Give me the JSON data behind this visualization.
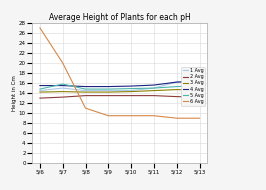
{
  "title": "Average Height of Plants for each pH",
  "ylabel": "Height in Cm",
  "x_labels": [
    "5/6",
    "5/7",
    "5/8",
    "5/9",
    "5/10",
    "5/11",
    "5/12",
    "5/13"
  ],
  "ylim": [
    0,
    28
  ],
  "yticks": [
    0,
    2,
    4,
    6,
    8,
    10,
    12,
    14,
    16,
    18,
    20,
    22,
    24,
    26,
    28
  ],
  "series": [
    {
      "label": "1 Avg",
      "color": "#a8c8e8",
      "values": [
        14.5,
        15.0,
        14.5,
        14.5,
        14.5,
        15.0,
        16.2,
        16.3
      ]
    },
    {
      "label": "2 Avg",
      "color": "#8B3a3a",
      "values": [
        13.0,
        13.2,
        13.5,
        13.5,
        13.5,
        13.5,
        13.3,
        13.2
      ]
    },
    {
      "label": "3 Avg",
      "color": "#8B8000",
      "values": [
        14.2,
        14.3,
        14.2,
        14.2,
        14.3,
        14.5,
        14.7,
        14.6
      ]
    },
    {
      "label": "4 Avg",
      "color": "#1a237e",
      "values": [
        15.5,
        15.5,
        15.3,
        15.3,
        15.4,
        15.6,
        16.2,
        16.3
      ]
    },
    {
      "label": "5 Avg",
      "color": "#4db6ac",
      "values": [
        14.8,
        15.8,
        14.8,
        14.8,
        14.9,
        15.0,
        15.3,
        15.5
      ]
    },
    {
      "label": "6 Avg",
      "color": "#d4884a",
      "values": [
        27.0,
        20.0,
        11.0,
        9.5,
        9.5,
        9.5,
        9.0,
        9.0
      ]
    }
  ],
  "background_color": "#f5f5f5",
  "plot_bg_color": "#ffffff",
  "grid_color": "#d8d8d8",
  "title_fontsize": 5.5,
  "tick_fontsize": 4.0,
  "ylabel_fontsize": 4.0,
  "legend_fontsize": 3.5,
  "linewidth": 0.8
}
